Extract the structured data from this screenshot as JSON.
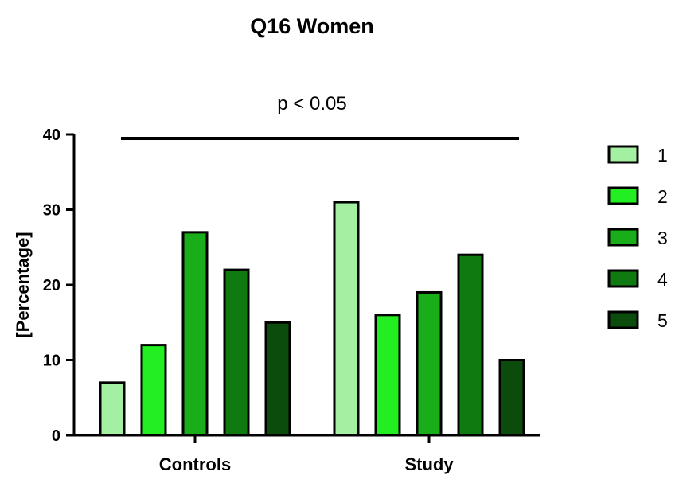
{
  "chart_data": {
    "type": "bar",
    "title": "Q16 Women",
    "xlabel": "",
    "ylabel": "[Percentage]",
    "ylim": [
      0,
      40
    ],
    "yticks": [
      "0",
      "10",
      "20",
      "30",
      "40"
    ],
    "categories": [
      "Controls",
      "Study"
    ],
    "series": [
      {
        "name": "1",
        "values": [
          7,
          31
        ],
        "color": "#a3f0a3"
      },
      {
        "name": "2",
        "values": [
          12,
          16
        ],
        "color": "#22ee22"
      },
      {
        "name": "3",
        "values": [
          27,
          19
        ],
        "color": "#19ad19"
      },
      {
        "name": "4",
        "values": [
          22,
          24
        ],
        "color": "#0f7a0f"
      },
      {
        "name": "5",
        "values": [
          15,
          10
        ],
        "color": "#0b4b0b"
      }
    ],
    "annotation": {
      "text": "p < 0.05",
      "y": 40
    },
    "grid": false,
    "legend_position": "right"
  }
}
